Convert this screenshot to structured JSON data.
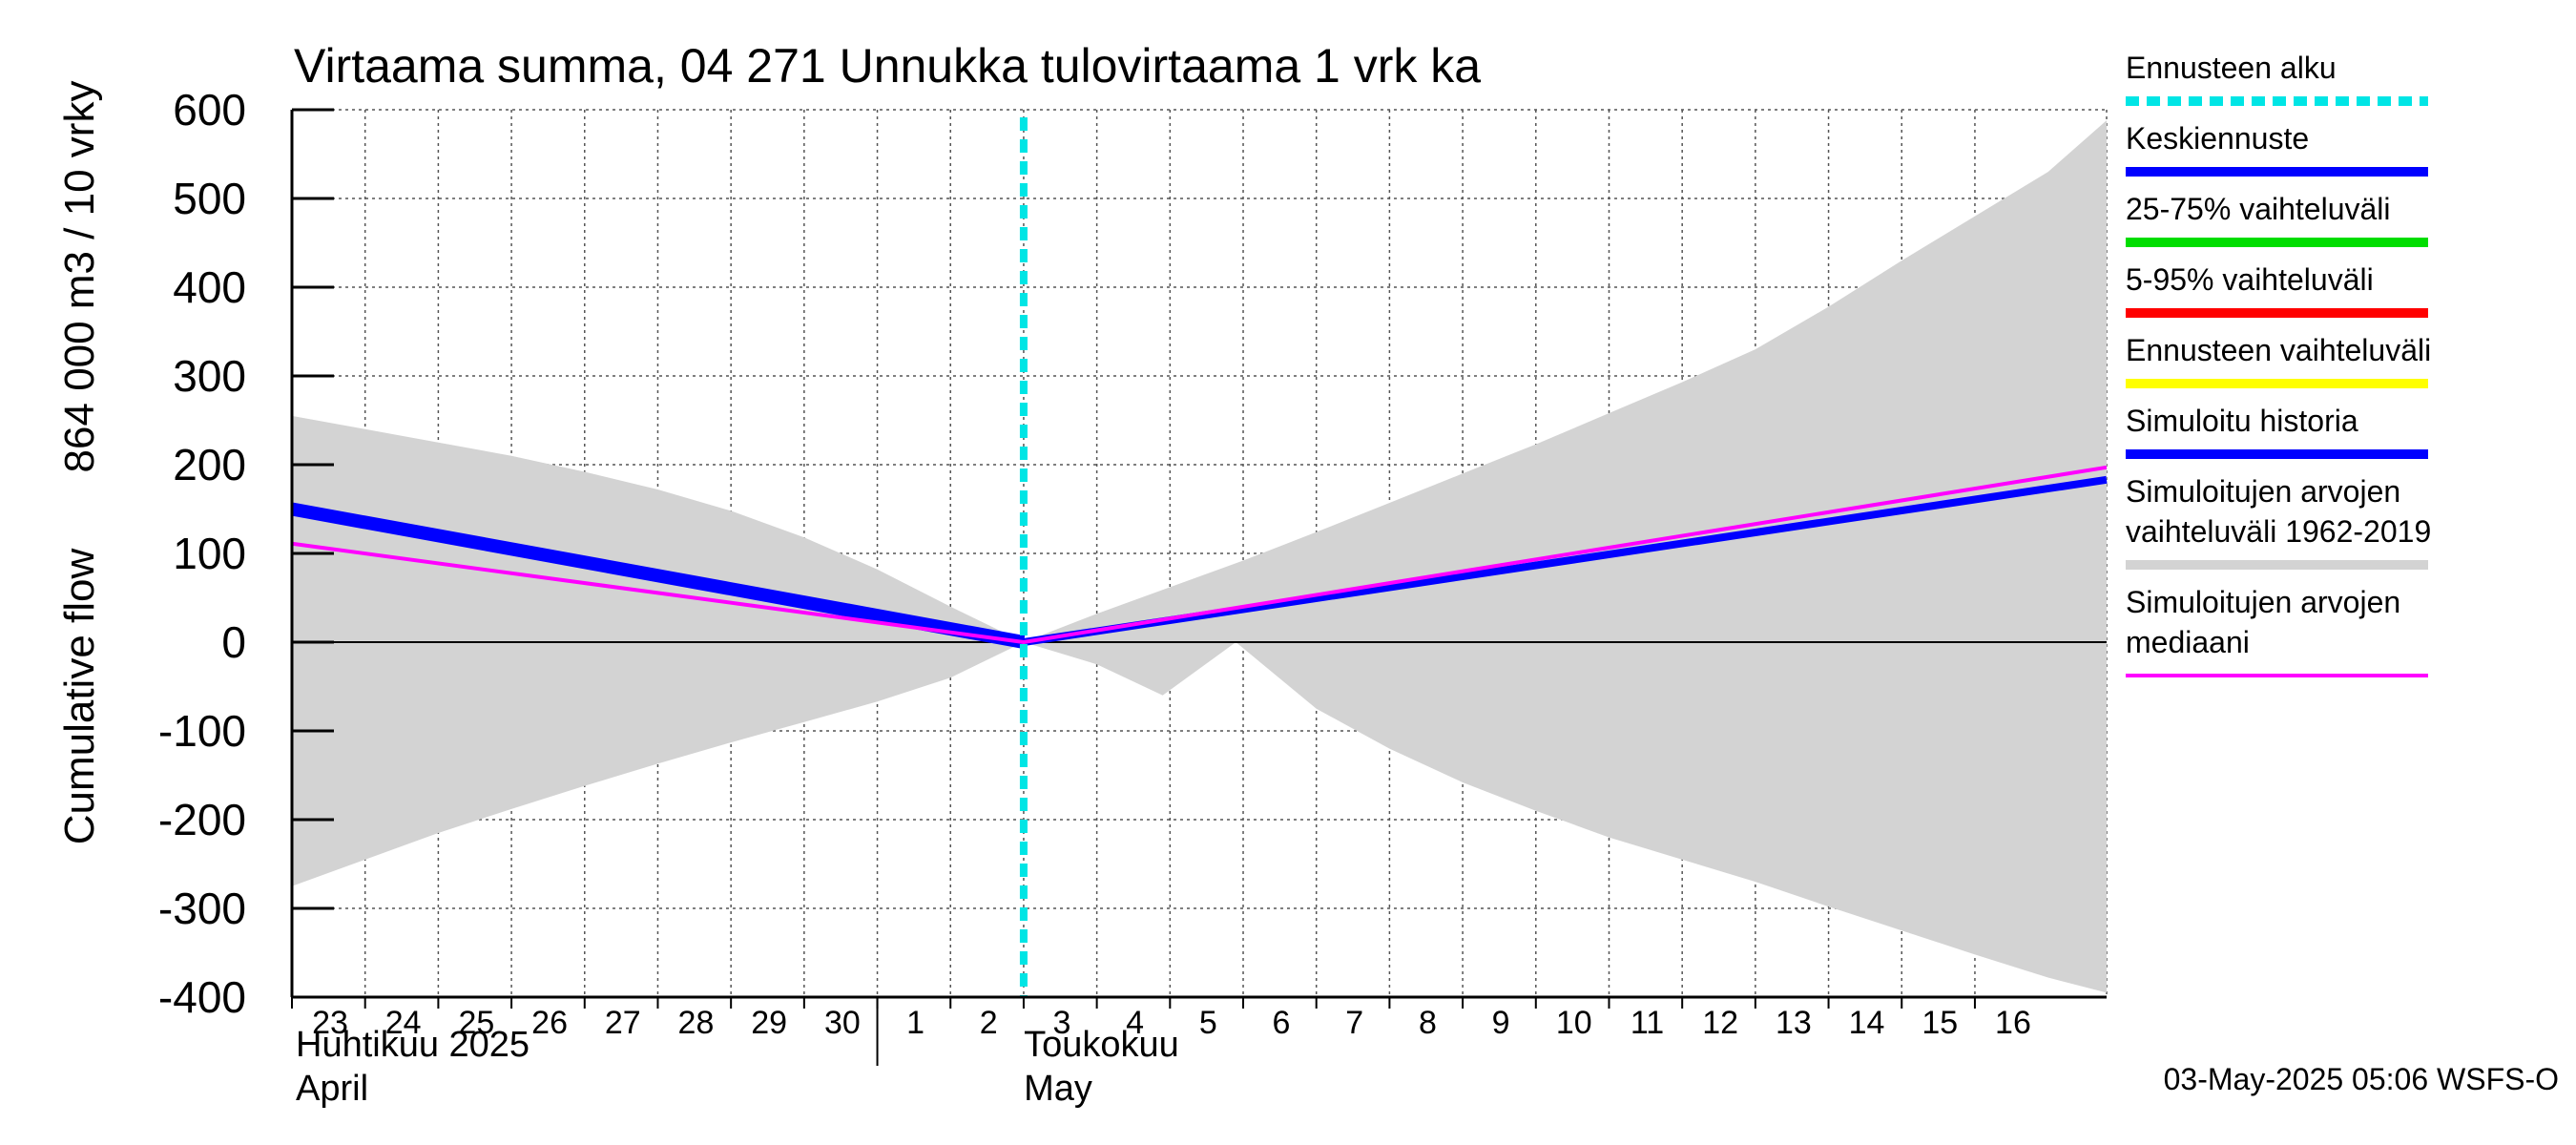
{
  "chart_data": {
    "type": "area",
    "title": "Virtaama summa, 04 271 Unnukka tulovirtaama 1 vrk ka",
    "ylabel_lines": [
      "Cumulative flow",
      "864 000 m3 / 10 vrky"
    ],
    "ylim": [
      -400,
      600
    ],
    "yticks": [
      -400,
      -300,
      -200,
      -100,
      0,
      100,
      200,
      300,
      400,
      500,
      600
    ],
    "xlim": [
      0,
      24.8
    ],
    "day_ticks": [
      {
        "x": 0,
        "label": "23"
      },
      {
        "x": 1,
        "label": "24"
      },
      {
        "x": 2,
        "label": "25"
      },
      {
        "x": 3,
        "label": "26"
      },
      {
        "x": 4,
        "label": "27"
      },
      {
        "x": 5,
        "label": "28"
      },
      {
        "x": 6,
        "label": "29"
      },
      {
        "x": 7,
        "label": "30"
      },
      {
        "x": 8,
        "label": "1"
      },
      {
        "x": 9,
        "label": "2"
      },
      {
        "x": 10,
        "label": "3"
      },
      {
        "x": 11,
        "label": "4"
      },
      {
        "x": 12,
        "label": "5"
      },
      {
        "x": 13,
        "label": "6"
      },
      {
        "x": 14,
        "label": "7"
      },
      {
        "x": 15,
        "label": "8"
      },
      {
        "x": 16,
        "label": "9"
      },
      {
        "x": 17,
        "label": "10"
      },
      {
        "x": 18,
        "label": "11"
      },
      {
        "x": 19,
        "label": "12"
      },
      {
        "x": 20,
        "label": "13"
      },
      {
        "x": 21,
        "label": "14"
      },
      {
        "x": 22,
        "label": "15"
      },
      {
        "x": 23,
        "label": "16"
      }
    ],
    "month_labels": [
      {
        "x": 0,
        "line1": "Huhtikuu  2025",
        "line2": "April"
      },
      {
        "x": 9.95,
        "line1": "Toukokuu",
        "line2": "May"
      }
    ],
    "month_separator_x": 8,
    "forecast_start_x": 10,
    "series": [
      {
        "name": "Simuloitujen arvojen vaihteluväli 1962-2019",
        "kind": "band",
        "color": "#d3d3d3",
        "upper": [
          [
            0,
            255
          ],
          [
            1,
            240
          ],
          [
            2,
            225
          ],
          [
            3,
            210
          ],
          [
            4,
            192
          ],
          [
            5,
            172
          ],
          [
            6,
            148
          ],
          [
            7,
            118
          ],
          [
            8,
            82
          ],
          [
            9,
            40
          ],
          [
            10,
            0
          ],
          [
            11,
            32
          ],
          [
            12,
            62
          ],
          [
            13,
            92
          ],
          [
            14,
            124
          ],
          [
            15,
            157
          ],
          [
            16,
            190
          ],
          [
            17,
            223
          ],
          [
            18,
            258
          ],
          [
            19,
            293
          ],
          [
            20,
            330
          ],
          [
            21,
            378
          ],
          [
            22,
            430
          ],
          [
            23,
            480
          ],
          [
            24,
            530
          ],
          [
            24.8,
            588
          ]
        ],
        "lower": [
          [
            0,
            -275
          ],
          [
            1,
            -245
          ],
          [
            2,
            -215
          ],
          [
            3,
            -188
          ],
          [
            4,
            -162
          ],
          [
            5,
            -137
          ],
          [
            6,
            -113
          ],
          [
            7,
            -90
          ],
          [
            8,
            -67
          ],
          [
            9,
            -40
          ],
          [
            10,
            0
          ],
          [
            11,
            -25
          ],
          [
            11.9,
            -60
          ],
          [
            12.9,
            0
          ],
          [
            14,
            -75
          ],
          [
            15,
            -120
          ],
          [
            16,
            -158
          ],
          [
            17,
            -190
          ],
          [
            18,
            -220
          ],
          [
            19,
            -245
          ],
          [
            20,
            -270
          ],
          [
            21,
            -298
          ],
          [
            22,
            -325
          ],
          [
            23,
            -352
          ],
          [
            24,
            -378
          ],
          [
            24.8,
            -395
          ]
        ]
      },
      {
        "name": "Simuloitu historia",
        "kind": "line",
        "color": "#0000ff",
        "width": 14,
        "points": [
          [
            0,
            150
          ],
          [
            10,
            0
          ]
        ]
      },
      {
        "name": "Keskiennuste",
        "kind": "line",
        "color": "#0000ff",
        "width": 8,
        "points": [
          [
            10,
            0
          ],
          [
            24.8,
            183
          ]
        ]
      },
      {
        "name": "Simuloitujen arvojen mediaani",
        "kind": "line",
        "color": "#ff00ff",
        "width": 4,
        "points": [
          [
            0,
            111
          ],
          [
            10,
            0
          ],
          [
            24.8,
            197
          ]
        ]
      }
    ],
    "legend": [
      {
        "label": "Ennusteen alku",
        "color": "#00e5e5",
        "style": "dashed"
      },
      {
        "label": "Keskiennuste",
        "color": "#0000ff",
        "style": "solid"
      },
      {
        "label": "25-75% vaihteluväli",
        "color": "#00dd00",
        "style": "solid"
      },
      {
        "label": "5-95% vaihteluväli",
        "color": "#ff0000",
        "style": "solid"
      },
      {
        "label": "Ennusteen vaihteluväli",
        "color": "#ffff00",
        "style": "solid"
      },
      {
        "label": "Simuloitu historia",
        "color": "#0000ff",
        "style": "solid"
      },
      {
        "label": "Simuloitujen arvojen\nvaihteluväli 1962-2019",
        "color": "#d3d3d3",
        "style": "solid"
      },
      {
        "label": "Simuloitujen arvojen\nmediaani",
        "color": "#ff00ff",
        "style": "thin"
      }
    ]
  },
  "footer": {
    "timestamp": "03-May-2025 05:06 WSFS-O"
  }
}
